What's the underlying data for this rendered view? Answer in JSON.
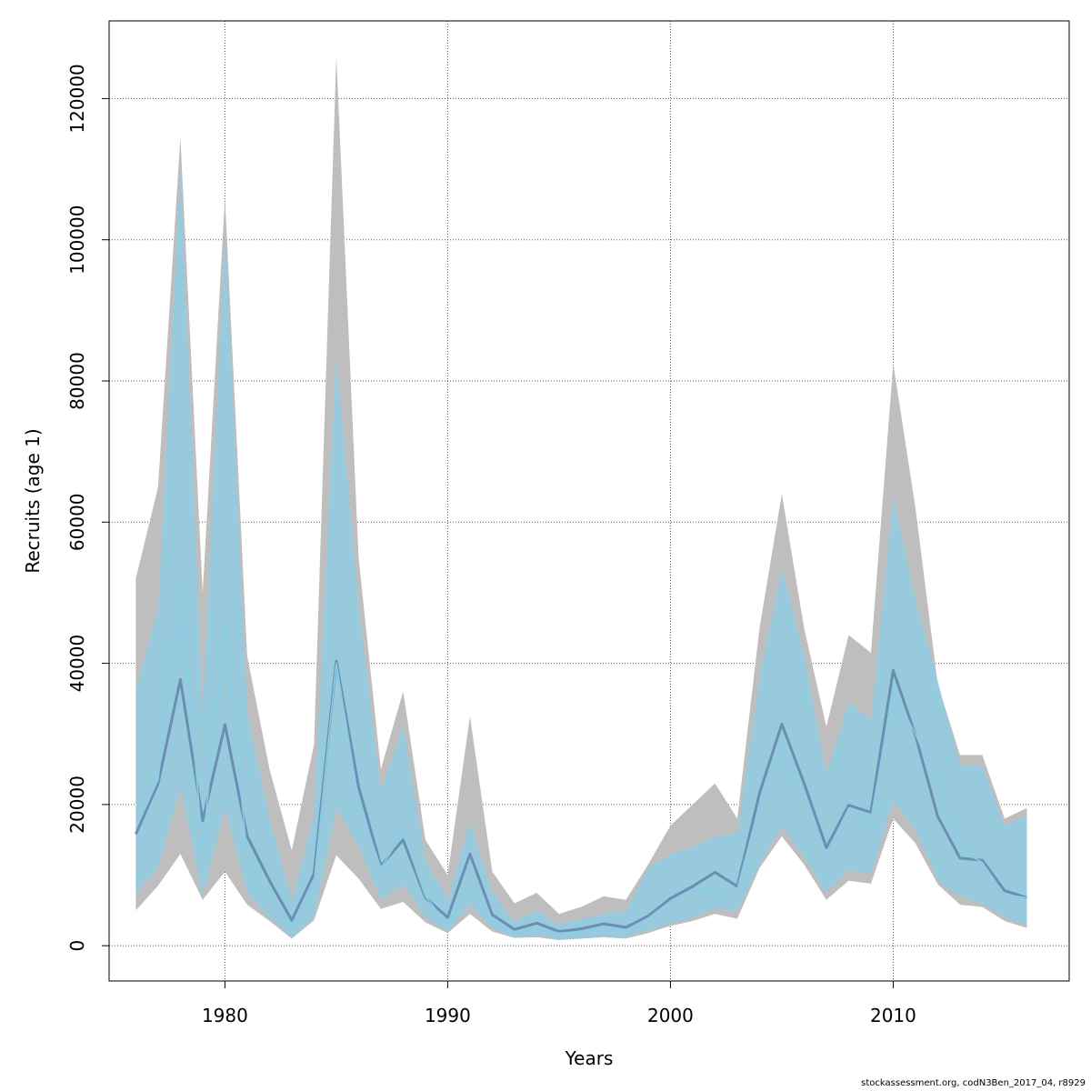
{
  "chart_data": {
    "type": "line",
    "xlabel": "Years",
    "ylabel": "Recruits (age 1)",
    "xlim": [
      1974.8,
      2017.9
    ],
    "ylim": [
      -5000,
      131000
    ],
    "xticks": [
      1980,
      1990,
      2000,
      2010
    ],
    "yticks": [
      0,
      20000,
      40000,
      60000,
      80000,
      100000,
      120000
    ],
    "grid": true,
    "x": [
      1976,
      1977,
      1978,
      1979,
      1980,
      1981,
      1982,
      1983,
      1984,
      1985,
      1986,
      1987,
      1988,
      1989,
      1990,
      1991,
      1992,
      1993,
      1994,
      1995,
      1996,
      1997,
      1998,
      1999,
      2000,
      2001,
      2002,
      2003,
      2004,
      2005,
      2006,
      2007,
      2008,
      2009,
      2010,
      2011,
      2012,
      2013,
      2014,
      2015,
      2016
    ],
    "series": [
      {
        "role": "band_outer",
        "color": "#bebebe",
        "lower": [
          5000,
          8500,
          13000,
          6500,
          10500,
          5800,
          3500,
          1000,
          3600,
          12800,
          9500,
          5200,
          6200,
          3300,
          1800,
          4500,
          2000,
          1100,
          1200,
          800,
          1000,
          1200,
          1000,
          1800,
          2800,
          3500,
          4500,
          3800,
          11000,
          15500,
          11500,
          6500,
          9200,
          8800,
          18000,
          14500,
          8700,
          5800,
          5500,
          3500,
          2500
        ],
        "upper": [
          52000,
          65000,
          114500,
          50000,
          106000,
          41000,
          25000,
          13500,
          28500,
          126000,
          55000,
          25000,
          36000,
          15000,
          10000,
          32500,
          10500,
          6000,
          7500,
          4500,
          5500,
          7000,
          6500,
          11500,
          17000,
          20000,
          23000,
          18000,
          45000,
          64000,
          45000,
          31000,
          44000,
          41500,
          82500,
          62000,
          37000,
          27000,
          27000,
          18000,
          19500
        ]
      },
      {
        "role": "band_inner",
        "color": "#87ceeb",
        "lower": [
          7500,
          11000,
          22500,
          7000,
          19500,
          7500,
          4000,
          1200,
          4000,
          19500,
          14000,
          6500,
          8800,
          4000,
          2000,
          5800,
          2500,
          1200,
          1500,
          900,
          1100,
          1300,
          1200,
          2200,
          3200,
          4000,
          5200,
          5000,
          11500,
          17000,
          12500,
          7500,
          10800,
          10300,
          20500,
          16500,
          9200,
          7000,
          6000,
          4000,
          3000
        ],
        "upper": [
          36000,
          48000,
          110000,
          33000,
          101000,
          33000,
          18000,
          6500,
          18500,
          84000,
          48000,
          22000,
          31000,
          12000,
          6500,
          17500,
          7500,
          3500,
          5000,
          3000,
          3800,
          4500,
          5000,
          11000,
          13000,
          14000,
          15500,
          16000,
          38000,
          53500,
          41000,
          24500,
          34500,
          32000,
          63500,
          49000,
          37500,
          25500,
          25500,
          17000,
          18500
        ]
      },
      {
        "role": "line_estimate",
        "color": "#6a8fb0",
        "values": [
          15800,
          23000,
          37700,
          17700,
          31300,
          15500,
          9200,
          3600,
          10200,
          40300,
          22500,
          11300,
          15000,
          6800,
          4000,
          13000,
          4400,
          2300,
          3200,
          2000,
          2400,
          3100,
          2600,
          4200,
          6700,
          8400,
          10400,
          8400,
          21600,
          31400,
          23000,
          13900,
          19900,
          18900,
          39000,
          29800,
          18300,
          12400,
          12100,
          7800,
          6800
        ]
      },
      {
        "role": "line_alt",
        "color": "#87ceeb",
        "values": [
          16500,
          23500,
          50500,
          14000,
          45000,
          12800,
          6800,
          2800,
          9000,
          40000,
          20500,
          11000,
          16000,
          7000,
          3000,
          9000,
          3500,
          1800,
          2500,
          1800,
          2000,
          2500,
          2200,
          3900,
          6300,
          7900,
          8000,
          8100,
          20000,
          29000,
          22000,
          13000,
          19500,
          18000,
          36000,
          30000,
          22500,
          13500,
          11800,
          7200,
          6800
        ]
      }
    ]
  },
  "footer": "stockassessment.org, codN3Ben_2017_04, r8929"
}
